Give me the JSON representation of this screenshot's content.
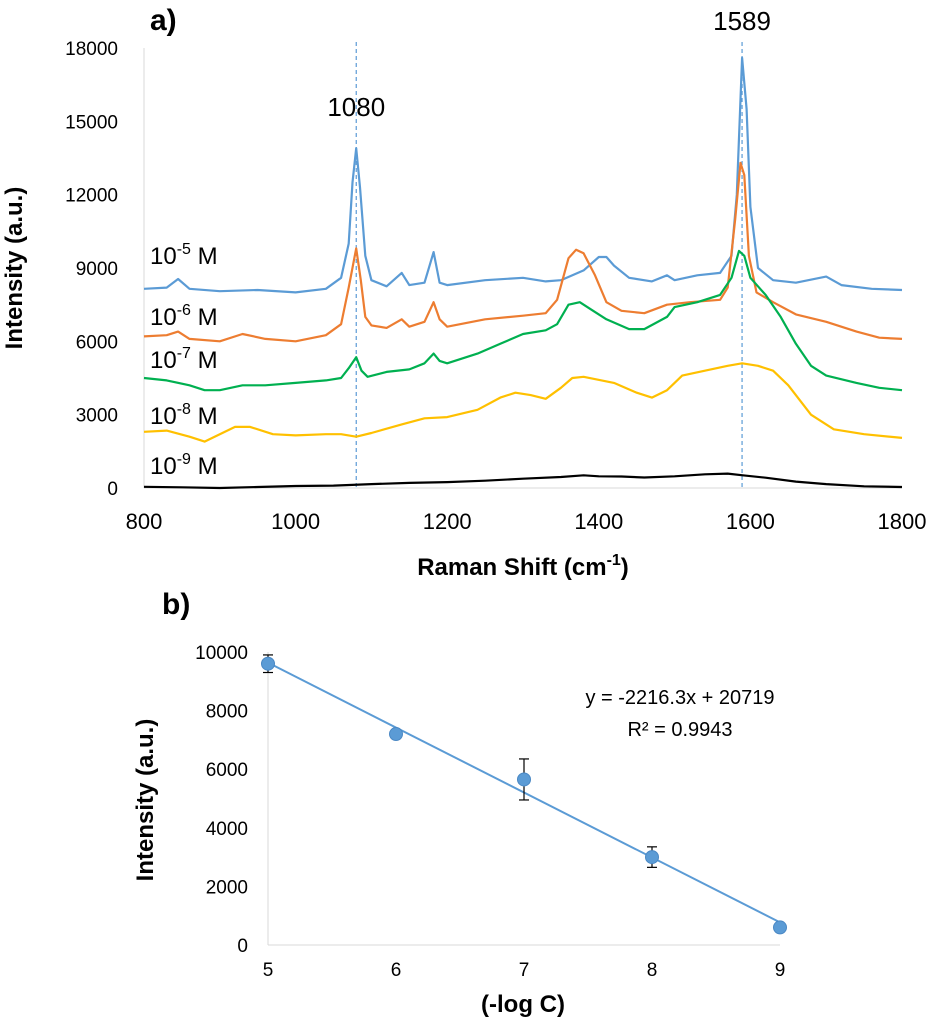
{
  "chart_data": [
    {
      "panel": "a)",
      "type": "line",
      "xlabel": "Raman Shift (cm",
      "xlabel_sup": "-1",
      "xlabel_end": ")",
      "ylabel": "Intensity (a.u.)",
      "xlim": [
        800,
        1800
      ],
      "ylim": [
        0,
        18000
      ],
      "xticks": [
        "800",
        "1000",
        "1200",
        "1400",
        "1600",
        "1800"
      ],
      "yticks": [
        "0",
        "3000",
        "6000",
        "9000",
        "12000",
        "15000",
        "18000"
      ],
      "grid": false,
      "peak_markers": [
        {
          "label": "1080",
          "x": 1080
        },
        {
          "label": "1589",
          "x": 1589
        }
      ],
      "series": [
        {
          "label_base": "10",
          "label_exp": "-5",
          "label_unit": " M",
          "color": "#5b9bd5",
          "points": [
            [
              800,
              8150
            ],
            [
              830,
              8200
            ],
            [
              845,
              8550
            ],
            [
              860,
              8150
            ],
            [
              900,
              8050
            ],
            [
              950,
              8100
            ],
            [
              1000,
              8000
            ],
            [
              1040,
              8150
            ],
            [
              1060,
              8600
            ],
            [
              1070,
              10000
            ],
            [
              1075,
              12500
            ],
            [
              1080,
              13900
            ],
            [
              1085,
              12300
            ],
            [
              1092,
              9500
            ],
            [
              1100,
              8500
            ],
            [
              1120,
              8250
            ],
            [
              1140,
              8800
            ],
            [
              1150,
              8300
            ],
            [
              1170,
              8400
            ],
            [
              1182,
              9650
            ],
            [
              1190,
              8400
            ],
            [
              1200,
              8300
            ],
            [
              1250,
              8500
            ],
            [
              1300,
              8600
            ],
            [
              1330,
              8450
            ],
            [
              1350,
              8500
            ],
            [
              1380,
              8900
            ],
            [
              1400,
              9450
            ],
            [
              1410,
              9450
            ],
            [
              1420,
              9100
            ],
            [
              1440,
              8600
            ],
            [
              1470,
              8450
            ],
            [
              1490,
              8700
            ],
            [
              1500,
              8500
            ],
            [
              1530,
              8700
            ],
            [
              1560,
              8800
            ],
            [
              1575,
              9500
            ],
            [
              1582,
              12000
            ],
            [
              1589,
              17600
            ],
            [
              1595,
              15500
            ],
            [
              1600,
              11500
            ],
            [
              1610,
              9000
            ],
            [
              1630,
              8500
            ],
            [
              1660,
              8400
            ],
            [
              1700,
              8650
            ],
            [
              1720,
              8300
            ],
            [
              1760,
              8150
            ],
            [
              1800,
              8100
            ]
          ]
        },
        {
          "label_base": "10",
          "label_exp": "-6",
          "label_unit": " M",
          "color": "#ed7d31",
          "points": [
            [
              800,
              6200
            ],
            [
              830,
              6250
            ],
            [
              845,
              6400
            ],
            [
              860,
              6100
            ],
            [
              900,
              6000
            ],
            [
              930,
              6300
            ],
            [
              960,
              6100
            ],
            [
              1000,
              6000
            ],
            [
              1040,
              6250
            ],
            [
              1060,
              6700
            ],
            [
              1070,
              8200
            ],
            [
              1080,
              9800
            ],
            [
              1086,
              8500
            ],
            [
              1092,
              7000
            ],
            [
              1100,
              6650
            ],
            [
              1120,
              6550
            ],
            [
              1140,
              6900
            ],
            [
              1150,
              6600
            ],
            [
              1170,
              6800
            ],
            [
              1182,
              7600
            ],
            [
              1190,
              6900
            ],
            [
              1200,
              6600
            ],
            [
              1250,
              6900
            ],
            [
              1300,
              7050
            ],
            [
              1330,
              7150
            ],
            [
              1345,
              7700
            ],
            [
              1360,
              9400
            ],
            [
              1370,
              9750
            ],
            [
              1380,
              9600
            ],
            [
              1395,
              8700
            ],
            [
              1410,
              7600
            ],
            [
              1430,
              7250
            ],
            [
              1460,
              7150
            ],
            [
              1490,
              7500
            ],
            [
              1520,
              7600
            ],
            [
              1560,
              7700
            ],
            [
              1570,
              8200
            ],
            [
              1580,
              11000
            ],
            [
              1587,
              13300
            ],
            [
              1592,
              12800
            ],
            [
              1598,
              9500
            ],
            [
              1608,
              8000
            ],
            [
              1630,
              7600
            ],
            [
              1660,
              7100
            ],
            [
              1700,
              6800
            ],
            [
              1740,
              6400
            ],
            [
              1770,
              6150
            ],
            [
              1800,
              6100
            ]
          ]
        },
        {
          "label_base": "10",
          "label_exp": "-7",
          "label_unit": " M",
          "color": "#00b050",
          "points": [
            [
              800,
              4500
            ],
            [
              830,
              4400
            ],
            [
              860,
              4200
            ],
            [
              880,
              4000
            ],
            [
              900,
              4000
            ],
            [
              930,
              4200
            ],
            [
              960,
              4200
            ],
            [
              1000,
              4300
            ],
            [
              1040,
              4400
            ],
            [
              1060,
              4500
            ],
            [
              1070,
              4900
            ],
            [
              1080,
              5350
            ],
            [
              1087,
              4800
            ],
            [
              1095,
              4550
            ],
            [
              1120,
              4750
            ],
            [
              1150,
              4850
            ],
            [
              1170,
              5100
            ],
            [
              1182,
              5500
            ],
            [
              1190,
              5200
            ],
            [
              1200,
              5100
            ],
            [
              1240,
              5500
            ],
            [
              1270,
              5900
            ],
            [
              1300,
              6300
            ],
            [
              1330,
              6450
            ],
            [
              1345,
              6700
            ],
            [
              1360,
              7500
            ],
            [
              1375,
              7600
            ],
            [
              1390,
              7300
            ],
            [
              1410,
              6900
            ],
            [
              1440,
              6500
            ],
            [
              1460,
              6500
            ],
            [
              1490,
              7000
            ],
            [
              1500,
              7400
            ],
            [
              1530,
              7600
            ],
            [
              1560,
              7900
            ],
            [
              1575,
              8600
            ],
            [
              1585,
              9700
            ],
            [
              1592,
              9500
            ],
            [
              1600,
              8600
            ],
            [
              1620,
              7900
            ],
            [
              1640,
              7000
            ],
            [
              1660,
              5900
            ],
            [
              1680,
              5000
            ],
            [
              1700,
              4600
            ],
            [
              1740,
              4300
            ],
            [
              1770,
              4100
            ],
            [
              1800,
              4000
            ]
          ]
        },
        {
          "label_base": "10",
          "label_exp": "-8",
          "label_unit": " M",
          "color": "#ffc000",
          "points": [
            [
              800,
              2300
            ],
            [
              830,
              2350
            ],
            [
              860,
              2100
            ],
            [
              880,
              1900
            ],
            [
              900,
              2200
            ],
            [
              920,
              2500
            ],
            [
              940,
              2500
            ],
            [
              970,
              2200
            ],
            [
              1000,
              2150
            ],
            [
              1040,
              2200
            ],
            [
              1060,
              2200
            ],
            [
              1080,
              2100
            ],
            [
              1100,
              2250
            ],
            [
              1140,
              2600
            ],
            [
              1170,
              2850
            ],
            [
              1200,
              2900
            ],
            [
              1240,
              3200
            ],
            [
              1270,
              3700
            ],
            [
              1290,
              3900
            ],
            [
              1310,
              3800
            ],
            [
              1330,
              3650
            ],
            [
              1350,
              4100
            ],
            [
              1365,
              4500
            ],
            [
              1380,
              4550
            ],
            [
              1420,
              4300
            ],
            [
              1450,
              3900
            ],
            [
              1470,
              3700
            ],
            [
              1490,
              4000
            ],
            [
              1510,
              4600
            ],
            [
              1540,
              4800
            ],
            [
              1570,
              5000
            ],
            [
              1589,
              5100
            ],
            [
              1610,
              5000
            ],
            [
              1630,
              4800
            ],
            [
              1650,
              4200
            ],
            [
              1680,
              3000
            ],
            [
              1710,
              2400
            ],
            [
              1750,
              2200
            ],
            [
              1800,
              2050
            ]
          ]
        },
        {
          "label_base": "10",
          "label_exp": "-9",
          "label_unit": " M",
          "color": "#000000",
          "points": [
            [
              800,
              50
            ],
            [
              850,
              30
            ],
            [
              900,
              0
            ],
            [
              950,
              40
            ],
            [
              1000,
              80
            ],
            [
              1050,
              100
            ],
            [
              1100,
              160
            ],
            [
              1150,
              210
            ],
            [
              1200,
              240
            ],
            [
              1250,
              300
            ],
            [
              1300,
              380
            ],
            [
              1350,
              450
            ],
            [
              1380,
              520
            ],
            [
              1400,
              480
            ],
            [
              1430,
              470
            ],
            [
              1460,
              430
            ],
            [
              1500,
              480
            ],
            [
              1540,
              560
            ],
            [
              1570,
              590
            ],
            [
              1590,
              520
            ],
            [
              1620,
              420
            ],
            [
              1660,
              260
            ],
            [
              1700,
              160
            ],
            [
              1750,
              70
            ],
            [
              1800,
              40
            ]
          ]
        }
      ]
    },
    {
      "panel": "b)",
      "type": "scatter",
      "xlabel": "(-log C)",
      "ylabel": "Intensity (a.u.)",
      "xlim": [
        5,
        9
      ],
      "ylim": [
        0,
        10000
      ],
      "xticks": [
        "5",
        "6",
        "7",
        "8",
        "9"
      ],
      "yticks": [
        "0",
        "2000",
        "4000",
        "6000",
        "8000",
        "10000"
      ],
      "grid": false,
      "color": "#5b9bd5",
      "points": [
        {
          "x": 5,
          "y": 9600,
          "err": 300
        },
        {
          "x": 6,
          "y": 7200,
          "err": 150
        },
        {
          "x": 7,
          "y": 5650,
          "err": 700
        },
        {
          "x": 8,
          "y": 3000,
          "err": 350
        },
        {
          "x": 9,
          "y": 600,
          "err": 0
        }
      ],
      "trendline": {
        "slope": -2216.3,
        "intercept": 20719
      },
      "equation": "y = -2216.3x + 20719",
      "r_squared": "R² = 0.9943"
    }
  ]
}
